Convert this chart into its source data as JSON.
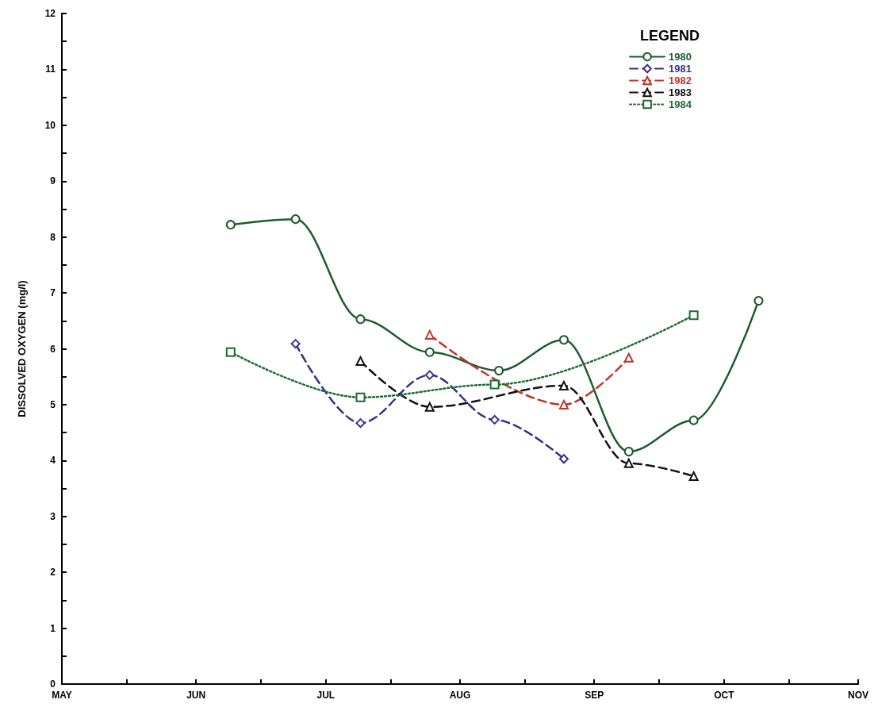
{
  "chart_data": {
    "type": "line",
    "ylabel": "DISSOLVED OXYGEN (mg/l)",
    "legend_title": "LEGEND",
    "legend": "top right",
    "grid": false,
    "xlim": [
      "--05-01",
      "--11-01"
    ],
    "ylim": [
      0,
      12
    ],
    "xticks": [
      {
        "value": "--05-01",
        "label": "MAY"
      },
      {
        "value": "--05-16",
        "label": null
      },
      {
        "value": "--06-01",
        "label": "JUN"
      },
      {
        "value": "--06-16",
        "label": null
      },
      {
        "value": "--07-01",
        "label": "JUL"
      },
      {
        "value": "--07-16",
        "label": null
      },
      {
        "value": "--08-01",
        "label": "AUG"
      },
      {
        "value": "--08-16",
        "label": null
      },
      {
        "value": "--09-01",
        "label": "SEP"
      },
      {
        "value": "--09-16",
        "label": null
      },
      {
        "value": "--10-01",
        "label": "OCT"
      },
      {
        "value": "--10-16",
        "label": null
      },
      {
        "value": "--11-01",
        "label": "NOV"
      }
    ],
    "yticks": [
      0,
      {
        "value": 0.5,
        "label": null
      },
      1,
      {
        "value": 1.5,
        "label": null
      },
      2,
      {
        "value": 2.5,
        "label": null
      },
      3,
      {
        "value": 3.5,
        "label": null
      },
      4,
      {
        "value": 4.5,
        "label": null
      },
      5,
      {
        "value": 5.5,
        "label": null
      },
      6,
      {
        "value": 6.5,
        "label": null
      },
      7,
      {
        "value": 7.5,
        "label": null
      },
      8,
      {
        "value": 8.5,
        "label": null
      },
      9,
      {
        "value": 9.5,
        "label": null
      },
      10,
      {
        "value": 10.5,
        "label": null
      },
      11,
      {
        "value": 11.5,
        "label": null
      },
      12
    ],
    "series": [
      {
        "name": "1980",
        "color": "#1e5b2e",
        "marker": "circle",
        "line_style": "solid",
        "x": [
          "--06-09",
          "--06-24",
          "--07-09",
          "--07-25",
          "--08-10",
          "--08-25",
          "--09-09",
          "--09-24",
          "--10-09"
        ],
        "values": [
          8.22,
          8.32,
          6.53,
          5.94,
          5.61,
          6.16,
          4.16,
          4.72,
          6.86
        ]
      },
      {
        "name": "1981",
        "color": "#3a2f86",
        "marker": "diamond",
        "line_style": "dashed",
        "x": [
          "--06-24",
          "--07-09",
          "--07-25",
          "--08-09",
          "--08-25"
        ],
        "values": [
          6.09,
          4.67,
          5.53,
          4.73,
          4.03
        ]
      },
      {
        "name": "1982",
        "color": "#c0332b",
        "marker": "triangle",
        "line_style": "dashed",
        "x": [
          "--07-25",
          "--08-25",
          "--09-09"
        ],
        "values": [
          6.25,
          5.0,
          5.84
        ]
      },
      {
        "name": "1983",
        "color": "#111111",
        "marker": "triangle",
        "line_style": "dashed",
        "x": [
          "--07-09",
          "--07-25",
          "--08-25",
          "--09-09",
          "--09-24"
        ],
        "values": [
          5.78,
          4.96,
          5.34,
          3.95,
          3.72
        ]
      },
      {
        "name": "1984",
        "color": "#1e6b30",
        "marker": "square",
        "line_style": "dotted",
        "x": [
          "--06-09",
          "--07-09",
          "--08-09",
          "--09-24"
        ],
        "values": [
          5.94,
          5.13,
          5.36,
          6.6
        ]
      }
    ]
  }
}
